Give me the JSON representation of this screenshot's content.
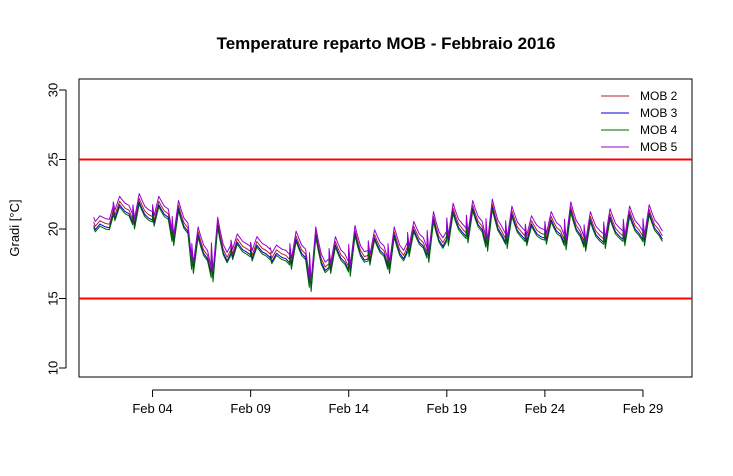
{
  "chart_data": {
    "type": "line",
    "title": "Temperature reparto MOB - Febbraio 2016",
    "xlabel": "",
    "ylabel": "Gradi [°C]",
    "x_start": "2016-02-01",
    "x_end": "2016-02-29",
    "xlim": [
      "2016-01-31T06:00",
      "2016-03-02T12:00"
    ],
    "ylim": [
      10,
      30
    ],
    "y_ticks": [
      10,
      15,
      20,
      25,
      30
    ],
    "x_ticks": [
      {
        "date": "2016-02-04",
        "label": "Feb 04"
      },
      {
        "date": "2016-02-09",
        "label": "Feb 09"
      },
      {
        "date": "2016-02-14",
        "label": "Feb 14"
      },
      {
        "date": "2016-02-19",
        "label": "Feb 19"
      },
      {
        "date": "2016-02-24",
        "label": "Feb 24"
      },
      {
        "date": "2016-02-29",
        "label": "Feb 29"
      }
    ],
    "reference_lines": [
      {
        "y": 25,
        "color": "#ff0000"
      },
      {
        "y": 15,
        "color": "#ff0000"
      }
    ],
    "legend_position": "top-right",
    "base_daily_min": [
      20.0,
      20.8,
      20.2,
      20.4,
      19.0,
      17.0,
      16.4,
      18.0,
      17.9,
      17.7,
      17.3,
      15.7,
      17.0,
      16.8,
      17.6,
      17.0,
      18.2,
      17.8,
      19.0,
      19.2,
      18.6,
      18.8,
      19.0,
      19.1,
      18.7,
      18.6,
      18.8,
      19.0,
      19.0
    ],
    "base_daily_max": [
      20.4,
      21.8,
      22.0,
      21.8,
      21.5,
      19.6,
      20.3,
      19.1,
      18.9,
      18.3,
      19.3,
      19.6,
      18.9,
      19.7,
      19.4,
      19.6,
      20.0,
      20.7,
      21.3,
      21.5,
      21.6,
      21.1,
      20.4,
      20.7,
      21.4,
      20.7,
      20.9,
      21.1,
      21.2
    ],
    "series": [
      {
        "name": "MOB 2",
        "color": "#b22222",
        "offset": 0.2
      },
      {
        "name": "MOB 3",
        "color": "#0000cd",
        "offset": -0.05
      },
      {
        "name": "MOB 4",
        "color": "#006400",
        "offset": -0.2
      },
      {
        "name": "MOB 5",
        "color": "#9400d3",
        "offset": 0.55
      }
    ]
  }
}
